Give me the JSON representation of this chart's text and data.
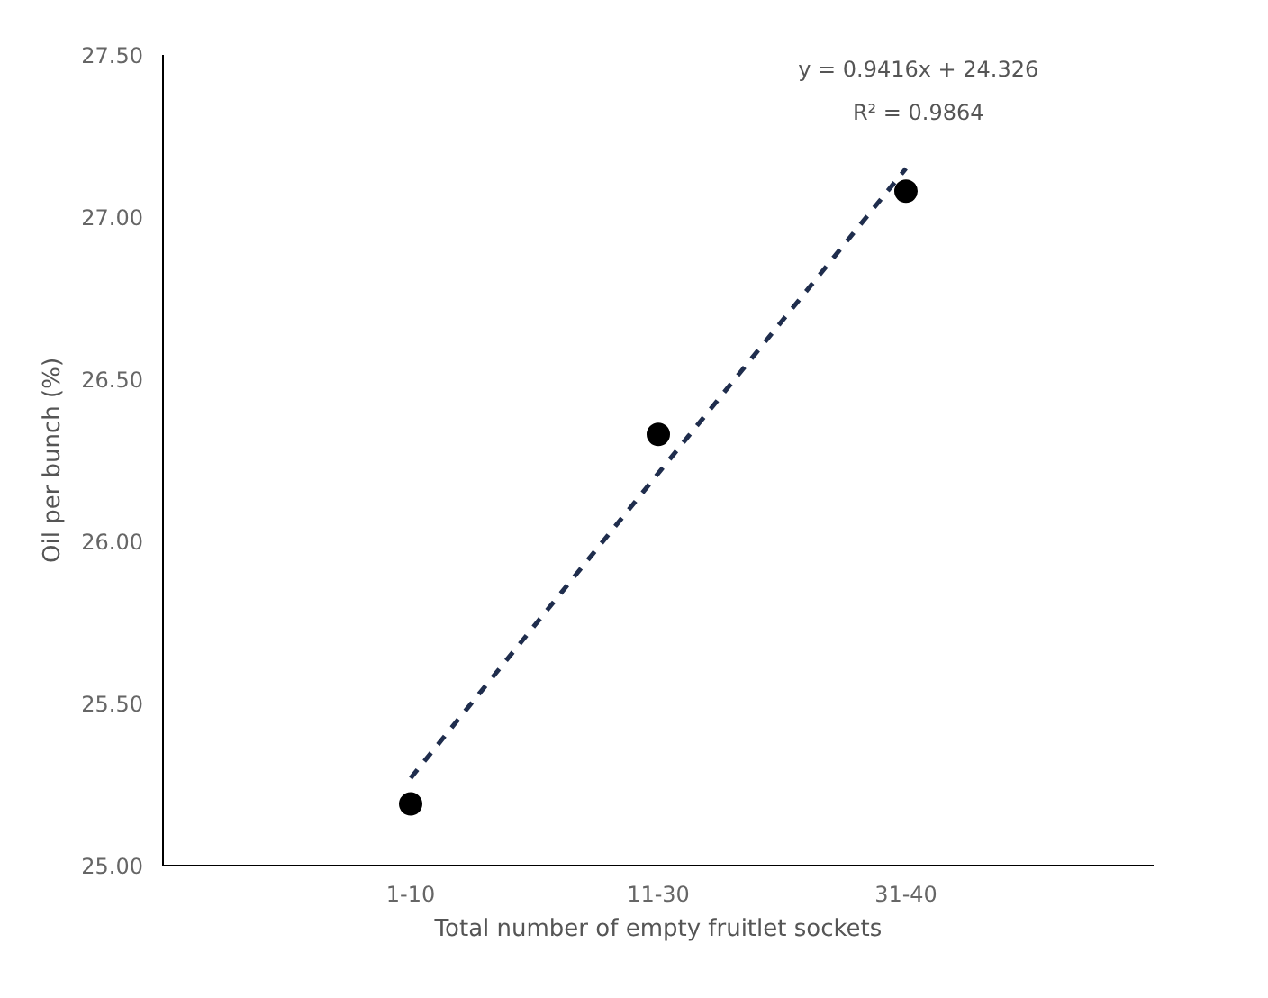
{
  "chart_data": {
    "type": "scatter",
    "xlabel": "Total number of empty fruitlet sockets",
    "ylabel": "Oil per bunch (%)",
    "categories": [
      "1-10",
      "11-30",
      "31-40"
    ],
    "series": [
      {
        "color": "#000000",
        "values": [
          25.19,
          26.33,
          27.08
        ],
        "marker": "circle"
      },
      {
        "type": "line",
        "color": "#1f2d4d",
        "x": [
          "1-10",
          "31-40"
        ],
        "values": [
          25.27,
          27.15
        ],
        "line_style": "dashed"
      }
    ],
    "ylim": [
      25.0,
      27.5
    ],
    "yticks": [
      {
        "value": 25.0,
        "label": "25.00"
      },
      {
        "value": 25.5,
        "label": "25.50"
      },
      {
        "value": 26.0,
        "label": "26.00"
      },
      {
        "value": 26.5,
        "label": "26.50"
      },
      {
        "value": 27.0,
        "label": "27.00"
      },
      {
        "value": 27.5,
        "label": "27.50"
      }
    ],
    "grid": false,
    "annotations": [
      "y = 0.9416x + 24.326",
      "R² = 0.9864"
    ]
  }
}
